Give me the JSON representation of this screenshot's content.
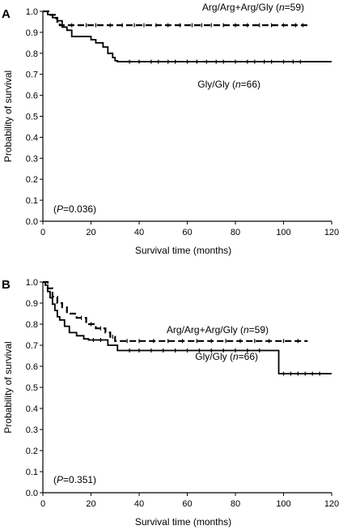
{
  "chart_data": [
    {
      "type": "line",
      "panel_label": "A",
      "xlabel": "Survival time (months)",
      "ylabel": "Probability of survival",
      "xlim": [
        0,
        120
      ],
      "ylim": [
        0.0,
        1.0
      ],
      "xticks": [
        0,
        20,
        40,
        60,
        80,
        100,
        120
      ],
      "yticks": [
        0.0,
        0.1,
        0.2,
        0.3,
        0.4,
        0.5,
        0.6,
        0.7,
        0.8,
        0.9,
        1.0
      ],
      "ytick_labels": [
        "0.0",
        "0.1",
        "0.2",
        "0.3",
        "0.4",
        "0.5",
        "0.6",
        "0.7",
        "0.8",
        "0.9",
        "1.0"
      ],
      "p_value": {
        "pre": "(",
        "p": "P",
        "post": "=0.036)"
      },
      "grid": false,
      "series": [
        {
          "name": "Arg/Arg+Arg/Gly (n=59)",
          "label_parts": {
            "pre": "Arg/Arg+Arg/Gly (",
            "n": "n",
            "post": "=59)"
          },
          "style": "dashed",
          "step_x": [
            0,
            3,
            5,
            6,
            7,
            8,
            9,
            10,
            110
          ],
          "step_y": [
            1.0,
            0.983,
            0.967,
            0.95,
            0.934,
            0.934,
            0.934,
            0.934,
            0.934
          ],
          "censor_x": [
            12,
            18,
            22,
            28,
            33,
            38,
            42,
            47,
            52,
            57,
            62,
            66,
            70,
            75,
            80,
            85,
            90,
            95,
            100,
            105,
            108
          ]
        },
        {
          "name": "Gly/Gly (n=66)",
          "label_parts": {
            "pre": "Gly/Gly (",
            "n": "n",
            "post": "=66)"
          },
          "style": "solid",
          "step_x": [
            0,
            2,
            4,
            6,
            8,
            10,
            12,
            20,
            22,
            25,
            27,
            29,
            30,
            31,
            120
          ],
          "step_y": [
            1.0,
            0.985,
            0.97,
            0.955,
            0.925,
            0.91,
            0.88,
            0.865,
            0.85,
            0.83,
            0.8,
            0.78,
            0.765,
            0.76,
            0.76
          ],
          "censor_x": [
            36,
            40,
            45,
            48,
            52,
            55,
            60,
            64,
            68,
            72,
            75,
            80,
            85,
            88,
            92,
            95,
            100,
            104,
            107
          ]
        }
      ]
    },
    {
      "type": "line",
      "panel_label": "B",
      "xlabel": "Survival time (months)",
      "ylabel": "Probability of survival",
      "xlim": [
        0,
        120
      ],
      "ylim": [
        0.0,
        1.0
      ],
      "xticks": [
        0,
        20,
        40,
        60,
        80,
        100,
        120
      ],
      "yticks": [
        0.0,
        0.1,
        0.2,
        0.3,
        0.4,
        0.5,
        0.6,
        0.7,
        0.8,
        0.9,
        1.0
      ],
      "ytick_labels": [
        "0.0",
        "0.1",
        "0.2",
        "0.3",
        "0.4",
        "0.5",
        "0.6",
        "0.7",
        "0.8",
        "0.9",
        "1.0"
      ],
      "p_value": {
        "pre": "(",
        "p": "P",
        "post": "=0.351)"
      },
      "grid": false,
      "series": [
        {
          "name": "Arg/Arg+Arg/Gly (n=59)",
          "label_parts": {
            "pre": "Arg/Arg+Arg/Gly (",
            "n": "n",
            "post": "=59)"
          },
          "style": "dashed",
          "step_x": [
            0,
            2,
            4,
            6,
            8,
            10,
            14,
            18,
            22,
            26,
            28,
            30,
            32,
            110
          ],
          "step_y": [
            1.0,
            0.97,
            0.93,
            0.9,
            0.88,
            0.85,
            0.83,
            0.8,
            0.78,
            0.76,
            0.74,
            0.72,
            0.72,
            0.72
          ],
          "censor_x": [
            16,
            20,
            24,
            29,
            35,
            40,
            46,
            52,
            58,
            64,
            70,
            76,
            82,
            88,
            94,
            100,
            106
          ]
        },
        {
          "name": "Gly/Gly (n=66)",
          "label_parts": {
            "pre": "Gly/Gly (",
            "n": "n",
            "post": "=66)"
          },
          "style": "solid",
          "step_x": [
            0,
            1,
            2,
            3,
            4,
            5,
            6,
            7,
            9,
            11,
            14,
            17,
            19,
            27,
            31,
            97,
            98,
            120
          ],
          "step_y": [
            1.0,
            0.985,
            0.955,
            0.925,
            0.895,
            0.865,
            0.835,
            0.82,
            0.79,
            0.76,
            0.745,
            0.73,
            0.725,
            0.7,
            0.675,
            0.675,
            0.565,
            0.565
          ],
          "censor_x": [
            21,
            24,
            36,
            40,
            45,
            50,
            55,
            60,
            65,
            70,
            75,
            80,
            85,
            90,
            100,
            103,
            106,
            109,
            112,
            115
          ]
        }
      ]
    }
  ]
}
